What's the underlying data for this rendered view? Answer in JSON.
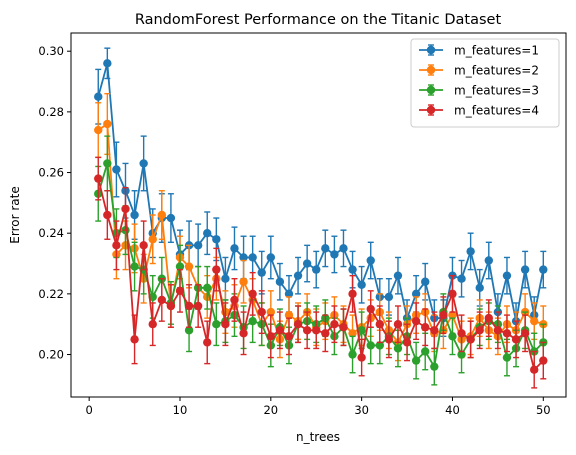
{
  "chart_data": {
    "type": "line",
    "title": "RandomForest Performance on the Titanic Dataset",
    "xlabel": "n_trees",
    "ylabel": "Error rate",
    "xlim": [
      -2.0,
      52.5
    ],
    "ylim": [
      0.186,
      0.306
    ],
    "xticks": [
      0,
      10,
      20,
      30,
      40,
      50
    ],
    "yticks": [
      0.2,
      0.22,
      0.24,
      0.26,
      0.28,
      0.3
    ],
    "ytick_labels": [
      "0.20",
      "0.22",
      "0.24",
      "0.26",
      "0.28",
      "0.30"
    ],
    "grid": false,
    "legend_position": "top-right",
    "x": [
      1,
      2,
      3,
      4,
      5,
      6,
      7,
      8,
      9,
      10,
      11,
      12,
      13,
      14,
      15,
      16,
      17,
      18,
      19,
      20,
      21,
      22,
      23,
      24,
      25,
      26,
      27,
      28,
      29,
      30,
      31,
      32,
      33,
      34,
      35,
      36,
      37,
      38,
      39,
      40,
      41,
      42,
      43,
      44,
      45,
      46,
      47,
      48,
      49,
      50
    ],
    "series": [
      {
        "name": "m_features=1",
        "color": "#1f77b4",
        "values": [
          0.285,
          0.296,
          0.261,
          0.254,
          0.246,
          0.263,
          0.24,
          0.245,
          0.245,
          0.233,
          0.236,
          0.236,
          0.24,
          0.238,
          0.225,
          0.235,
          0.232,
          0.232,
          0.227,
          0.232,
          0.224,
          0.22,
          0.226,
          0.23,
          0.228,
          0.235,
          0.233,
          0.235,
          0.228,
          0.223,
          0.231,
          0.219,
          0.219,
          0.226,
          0.212,
          0.22,
          0.224,
          0.212,
          0.212,
          0.226,
          0.225,
          0.234,
          0.222,
          0.231,
          0.214,
          0.226,
          0.211,
          0.228,
          0.213,
          0.228
        ],
        "errors": [
          0.009,
          0.005,
          0.009,
          0.009,
          0.008,
          0.009,
          0.008,
          0.008,
          0.008,
          0.008,
          0.008,
          0.007,
          0.007,
          0.007,
          0.007,
          0.007,
          0.007,
          0.007,
          0.007,
          0.007,
          0.006,
          0.006,
          0.006,
          0.006,
          0.006,
          0.006,
          0.006,
          0.006,
          0.006,
          0.006,
          0.006,
          0.006,
          0.006,
          0.006,
          0.006,
          0.006,
          0.006,
          0.006,
          0.006,
          0.006,
          0.006,
          0.006,
          0.006,
          0.006,
          0.006,
          0.006,
          0.006,
          0.006,
          0.006,
          0.006
        ]
      },
      {
        "name": "m_features=2",
        "color": "#ff7f0e",
        "values": [
          0.274,
          0.276,
          0.233,
          0.236,
          0.235,
          0.225,
          0.238,
          0.246,
          0.216,
          0.232,
          0.229,
          0.222,
          0.219,
          0.225,
          0.214,
          0.216,
          0.224,
          0.218,
          0.21,
          0.214,
          0.205,
          0.213,
          0.211,
          0.214,
          0.209,
          0.211,
          0.213,
          0.21,
          0.207,
          0.209,
          0.212,
          0.214,
          0.208,
          0.204,
          0.21,
          0.213,
          0.214,
          0.207,
          0.208,
          0.213,
          0.205,
          0.206,
          0.212,
          0.208,
          0.206,
          0.21,
          0.208,
          0.214,
          0.211,
          0.21
        ],
        "errors": [
          0.009,
          0.01,
          0.008,
          0.008,
          0.008,
          0.008,
          0.008,
          0.008,
          0.007,
          0.007,
          0.007,
          0.007,
          0.007,
          0.007,
          0.007,
          0.007,
          0.007,
          0.007,
          0.007,
          0.007,
          0.006,
          0.006,
          0.006,
          0.006,
          0.006,
          0.006,
          0.006,
          0.006,
          0.006,
          0.006,
          0.006,
          0.006,
          0.006,
          0.006,
          0.006,
          0.006,
          0.006,
          0.006,
          0.006,
          0.006,
          0.006,
          0.006,
          0.006,
          0.006,
          0.006,
          0.006,
          0.006,
          0.006,
          0.006,
          0.006
        ]
      },
      {
        "name": "m_features=3",
        "color": "#2ca02c",
        "values": [
          0.253,
          0.263,
          0.24,
          0.241,
          0.229,
          0.228,
          0.219,
          0.225,
          0.217,
          0.229,
          0.208,
          0.222,
          0.222,
          0.21,
          0.211,
          0.213,
          0.209,
          0.211,
          0.21,
          0.203,
          0.209,
          0.203,
          0.21,
          0.211,
          0.21,
          0.212,
          0.206,
          0.209,
          0.2,
          0.208,
          0.203,
          0.203,
          0.206,
          0.202,
          0.206,
          0.198,
          0.201,
          0.196,
          0.214,
          0.206,
          0.2,
          0.205,
          0.209,
          0.211,
          0.21,
          0.199,
          0.202,
          0.208,
          0.201,
          0.204
        ],
        "errors": [
          0.009,
          0.009,
          0.008,
          0.008,
          0.008,
          0.008,
          0.007,
          0.007,
          0.007,
          0.007,
          0.007,
          0.007,
          0.007,
          0.007,
          0.007,
          0.007,
          0.007,
          0.007,
          0.007,
          0.007,
          0.006,
          0.006,
          0.006,
          0.006,
          0.006,
          0.006,
          0.006,
          0.006,
          0.006,
          0.006,
          0.006,
          0.006,
          0.006,
          0.006,
          0.006,
          0.006,
          0.006,
          0.006,
          0.006,
          0.006,
          0.006,
          0.006,
          0.006,
          0.006,
          0.006,
          0.006,
          0.006,
          0.006,
          0.006,
          0.006
        ]
      },
      {
        "name": "m_features=4",
        "color": "#d62728",
        "values": [
          0.258,
          0.246,
          0.236,
          0.248,
          0.205,
          0.236,
          0.21,
          0.218,
          0.216,
          0.221,
          0.216,
          0.216,
          0.204,
          0.228,
          0.21,
          0.218,
          0.207,
          0.22,
          0.214,
          0.206,
          0.208,
          0.206,
          0.21,
          0.208,
          0.208,
          0.207,
          0.21,
          0.209,
          0.22,
          0.199,
          0.215,
          0.21,
          0.205,
          0.21,
          0.204,
          0.211,
          0.209,
          0.208,
          0.213,
          0.22,
          0.207,
          0.205,
          0.208,
          0.212,
          0.208,
          0.207,
          0.205,
          0.207,
          0.195,
          0.198
        ],
        "errors": [
          0.007,
          0.008,
          0.008,
          0.007,
          0.008,
          0.008,
          0.007,
          0.007,
          0.007,
          0.007,
          0.007,
          0.007,
          0.007,
          0.007,
          0.007,
          0.007,
          0.007,
          0.007,
          0.007,
          0.007,
          0.006,
          0.006,
          0.006,
          0.006,
          0.006,
          0.006,
          0.006,
          0.006,
          0.006,
          0.006,
          0.006,
          0.006,
          0.006,
          0.006,
          0.006,
          0.006,
          0.006,
          0.006,
          0.006,
          0.006,
          0.006,
          0.006,
          0.006,
          0.006,
          0.006,
          0.006,
          0.006,
          0.006,
          0.006,
          0.006
        ]
      }
    ]
  }
}
